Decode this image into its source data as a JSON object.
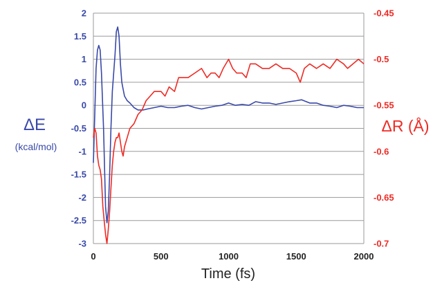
{
  "colors": {
    "left_series": "#3848a8",
    "right_series": "#ee2a24",
    "grid": "#9a9a9a",
    "x_text": "#222222"
  },
  "chart_data": {
    "type": "line",
    "xlabel": "Time (fs)",
    "xlim": [
      0,
      2000
    ],
    "x_ticks": [
      "0",
      "500",
      "1000",
      "1500",
      "2000"
    ],
    "left_axis": {
      "symbol": "ΔE",
      "unit": "(kcal/mol)",
      "lim": [
        -3,
        2
      ],
      "ticks": [
        "2",
        "1.5",
        "1",
        "0.5",
        "0",
        "-0.5",
        "-1",
        "-1.5",
        "-2",
        "-2.5",
        "-3"
      ]
    },
    "right_axis": {
      "symbol": "ΔR (Å)",
      "lim": [
        -0.7,
        -0.45
      ],
      "ticks": [
        "-0.45",
        "-0.5",
        "-0.55",
        "-0.6",
        "-0.65",
        "-0.7"
      ]
    },
    "grid": "horizontal",
    "series": [
      {
        "axis": "left",
        "x": [
          0,
          10,
          20,
          30,
          40,
          50,
          60,
          75,
          90,
          100,
          110,
          120,
          130,
          140,
          160,
          170,
          180,
          190,
          200,
          210,
          220,
          230,
          250,
          270,
          300,
          330,
          370,
          400,
          450,
          500,
          550,
          600,
          650,
          700,
          750,
          800,
          850,
          900,
          950,
          1000,
          1050,
          1100,
          1150,
          1200,
          1250,
          1300,
          1350,
          1400,
          1450,
          1500,
          1540,
          1600,
          1650,
          1700,
          1750,
          1800,
          1850,
          1900,
          1950,
          2000
        ],
        "y": [
          -1.25,
          -0.2,
          0.8,
          1.2,
          1.3,
          1.2,
          0.7,
          -0.5,
          -2.2,
          -2.55,
          -2.3,
          -1.5,
          -0.5,
          0.3,
          1.1,
          1.6,
          1.7,
          1.5,
          0.9,
          0.5,
          0.35,
          0.2,
          0.1,
          0.05,
          -0.05,
          -0.1,
          -0.1,
          -0.08,
          -0.05,
          -0.02,
          -0.05,
          -0.05,
          -0.02,
          0.0,
          -0.05,
          -0.08,
          -0.05,
          -0.02,
          0.0,
          0.05,
          0.0,
          0.02,
          0.0,
          0.08,
          0.05,
          0.05,
          0.02,
          0.05,
          0.08,
          0.1,
          0.12,
          0.05,
          0.05,
          0.0,
          -0.02,
          -0.05,
          0.0,
          -0.02,
          -0.05,
          -0.05
        ]
      },
      {
        "axis": "right",
        "x": [
          0,
          10,
          20,
          30,
          40,
          50,
          60,
          70,
          80,
          90,
          100,
          110,
          120,
          130,
          140,
          150,
          160,
          170,
          180,
          190,
          200,
          210,
          220,
          230,
          250,
          270,
          300,
          330,
          360,
          390,
          420,
          450,
          480,
          500,
          530,
          560,
          600,
          630,
          660,
          700,
          750,
          800,
          840,
          870,
          900,
          930,
          960,
          1000,
          1030,
          1060,
          1100,
          1130,
          1160,
          1200,
          1250,
          1300,
          1350,
          1400,
          1450,
          1500,
          1530,
          1560,
          1600,
          1650,
          1700,
          1750,
          1800,
          1850,
          1880,
          1920,
          1960,
          2000
        ],
        "y": [
          -0.585,
          -0.575,
          -0.58,
          -0.605,
          -0.615,
          -0.62,
          -0.63,
          -0.66,
          -0.675,
          -0.69,
          -0.7,
          -0.685,
          -0.665,
          -0.64,
          -0.615,
          -0.6,
          -0.59,
          -0.585,
          -0.585,
          -0.58,
          -0.59,
          -0.6,
          -0.605,
          -0.595,
          -0.585,
          -0.575,
          -0.57,
          -0.56,
          -0.555,
          -0.545,
          -0.54,
          -0.535,
          -0.535,
          -0.535,
          -0.54,
          -0.53,
          -0.535,
          -0.52,
          -0.52,
          -0.52,
          -0.515,
          -0.51,
          -0.52,
          -0.515,
          -0.515,
          -0.52,
          -0.51,
          -0.5,
          -0.51,
          -0.515,
          -0.515,
          -0.52,
          -0.505,
          -0.505,
          -0.51,
          -0.51,
          -0.505,
          -0.51,
          -0.51,
          -0.515,
          -0.525,
          -0.51,
          -0.505,
          -0.51,
          -0.505,
          -0.51,
          -0.5,
          -0.505,
          -0.51,
          -0.505,
          -0.5,
          -0.505
        ]
      }
    ]
  }
}
